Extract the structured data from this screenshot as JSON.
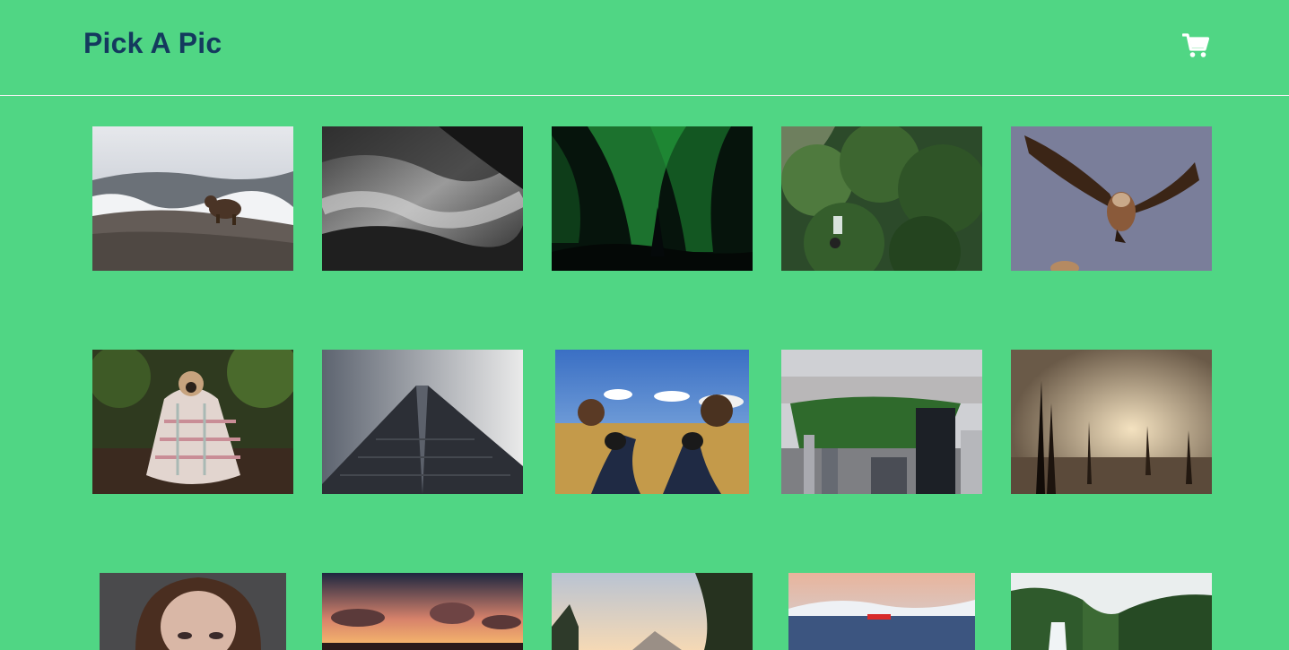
{
  "header": {
    "title": "Pick A Pic",
    "cart_icon": "shopping-cart-icon",
    "cart_color": "#ffffff"
  },
  "colors": {
    "background": "#50d684",
    "title": "#143a5e"
  },
  "photos": [
    {
      "subject": "bear-on-rock"
    },
    {
      "subject": "foggy-forest"
    },
    {
      "subject": "green-aurora"
    },
    {
      "subject": "mountain-biker-in-trees"
    },
    {
      "subject": "vulture-in-flight"
    },
    {
      "subject": "pug-in-blanket"
    },
    {
      "subject": "glass-skyscraper"
    },
    {
      "subject": "feet-on-field"
    },
    {
      "subject": "central-park-aerial"
    },
    {
      "subject": "dead-trees-sunset"
    },
    {
      "subject": "woman-portrait"
    },
    {
      "subject": "sunset-clouds"
    },
    {
      "subject": "sun-through-pines"
    },
    {
      "subject": "lake-with-boat"
    },
    {
      "subject": "forest-waterfall"
    }
  ]
}
